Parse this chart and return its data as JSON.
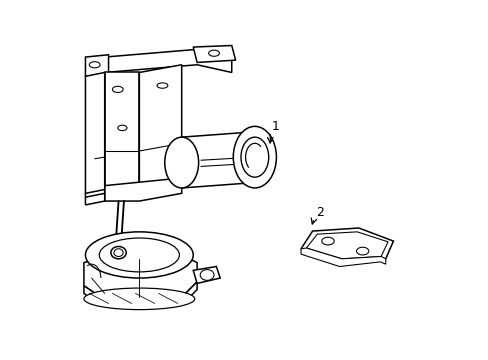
{
  "background_color": "#ffffff",
  "line_color": "#000000",
  "line_width": 1.1,
  "label_1_text": "1",
  "label_2_text": "2",
  "figsize": [
    4.89,
    3.6
  ],
  "dpi": 100
}
